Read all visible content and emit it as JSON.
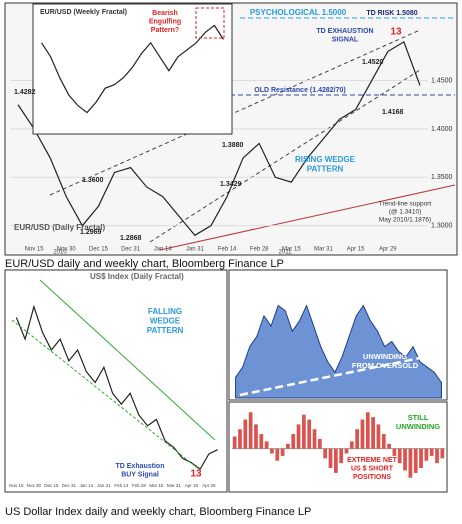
{
  "captions": [
    "EUR/USD daily and weekly chart, Bloomberg Finance LP",
    "US Dollar Index daily and weekly chart, Bloomberg Finance LP"
  ],
  "chart_data": [
    {
      "type": "line",
      "title": "EUR/USD (Daily Fractal)",
      "color": "#222222",
      "categories": [
        null,
        "Nov 15",
        null,
        "Nov 30",
        null,
        "Dec 15",
        null,
        "Dec 31",
        null,
        "Jan 14",
        null,
        "Jan 31",
        null,
        "Feb 14",
        null,
        "Feb 28",
        null,
        "Mar 15",
        null,
        "Mar 31",
        null,
        "Apr 15",
        null,
        "Apr 29",
        null,
        null
      ],
      "values": [
        1.425,
        1.4,
        1.37,
        1.33,
        1.3,
        1.32,
        1.355,
        1.36,
        1.34,
        1.33,
        1.31,
        1.29,
        1.3,
        1.33,
        1.37,
        1.385,
        1.35,
        1.345,
        1.37,
        1.39,
        1.41,
        1.42,
        1.45,
        1.48,
        1.49,
        1.445
      ],
      "ylim": [
        1.28,
        1.525
      ],
      "yticks": [
        {
          "value": 1.3,
          "label": "1.3000"
        },
        {
          "value": 1.35,
          "label": "1.3500"
        },
        {
          "value": 1.4,
          "label": "1.4000"
        },
        {
          "value": 1.45,
          "label": "1.4500"
        }
      ]
    },
    {
      "type": "line",
      "title": "EUR/USD (Weekly Fractal)",
      "color": "#222222",
      "values": [
        1.4,
        1.36,
        1.3,
        1.25,
        1.22,
        1.2,
        1.23,
        1.27,
        1.28,
        1.3,
        1.33,
        1.37,
        1.4,
        1.36,
        1.32,
        1.36,
        1.38,
        1.4,
        1.43,
        1.45,
        1.41
      ],
      "ylim": [
        1.15,
        1.5
      ]
    },
    {
      "type": "line",
      "title": "US$ Index (Daily Fractal)",
      "color": "#222222",
      "categories": [
        "Nov 15",
        null,
        "Nov 30",
        null,
        "Dec 15",
        null,
        "Dec 31",
        null,
        "Jan 14",
        null,
        "Jan 31",
        null,
        "Feb 14",
        null,
        "Feb 28",
        null,
        "Mar 15",
        null,
        "Mar 31",
        null,
        "Apr 15",
        null,
        "Apr 29",
        null
      ],
      "values": [
        80.5,
        79.5,
        81.0,
        79.8,
        79.0,
        79.5,
        78.5,
        79.0,
        78.0,
        77.5,
        78.2,
        77.0,
        76.5,
        77.0,
        76.0,
        75.5,
        75.8,
        74.8,
        74.5,
        74.0,
        73.8,
        73.5,
        74.2,
        74.4
      ],
      "ylim": [
        73,
        82
      ]
    },
    {
      "type": "area",
      "title": "US$ Index (Weekly Fractal)",
      "color": "#4a78c9",
      "values": [
        74,
        76,
        80,
        82,
        86,
        84,
        88,
        87,
        83,
        85,
        88,
        84,
        80,
        77,
        75,
        78,
        82,
        86,
        88,
        85,
        83,
        80,
        81,
        79,
        78,
        80,
        77,
        76,
        75,
        73
      ],
      "ylim": [
        70,
        92
      ]
    },
    {
      "type": "bar",
      "color": "#d9534f",
      "values": [
        5,
        8,
        12,
        15,
        10,
        6,
        3,
        -2,
        -5,
        -3,
        2,
        6,
        10,
        14,
        12,
        8,
        4,
        -4,
        -8,
        -10,
        -6,
        -2,
        3,
        8,
        12,
        15,
        13,
        10,
        6,
        2,
        -3,
        -6,
        -9,
        -12,
        -10,
        -8,
        -5,
        -3,
        -6,
        -4
      ],
      "ylim": [
        -15,
        18
      ]
    }
  ],
  "annotations": [
    {
      "lines": [
        "Bearish",
        "Engulfing",
        "Pattern?"
      ]
    },
    {
      "lines": [
        "PSYCHOLOGICAL 1.5000"
      ]
    },
    {
      "lines": [
        "TD RISK 1.5080"
      ]
    },
    {
      "lines": [
        "TD EXHAUSTION",
        "SIGNAL"
      ]
    },
    {
      "lines": [
        "13"
      ]
    },
    {
      "lines": [
        "1.4520"
      ]
    },
    {
      "lines": [
        "OLD Resistance (1.4282/70)"
      ]
    },
    {
      "lines": [
        "1.4282"
      ]
    },
    {
      "lines": [
        "1.4168"
      ]
    },
    {
      "lines": [
        "1.3880"
      ]
    },
    {
      "lines": [
        "1.3600"
      ]
    },
    {
      "lines": [
        "1.3429"
      ]
    },
    {
      "lines": [
        "RISING WEDGE",
        "PATTERN"
      ]
    },
    {
      "lines": [
        "1.2969"
      ]
    },
    {
      "lines": [
        "1.2868"
      ]
    },
    {
      "lines": [
        "Trend-line support",
        "(@ 1.3410)",
        "May 2010/1.1876)"
      ]
    },
    {
      "lines": [
        "2010"
      ]
    },
    {
      "lines": [
        "2011"
      ]
    },
    {
      "lines": [
        "FALLING",
        "WEDGE",
        "PATTERN"
      ]
    },
    {
      "lines": [
        "TD Exhaustion",
        "BUY Signal"
      ]
    },
    {
      "lines": [
        "13"
      ]
    },
    {
      "lines": [
        "UNWINDING",
        "FROM OVERSOLD"
      ]
    },
    {
      "lines": [
        "STILL",
        "UNWINDING"
      ]
    },
    {
      "lines": [
        "EXTREME NET",
        "US $ SHORT",
        "POSITIONS"
      ]
    }
  ]
}
